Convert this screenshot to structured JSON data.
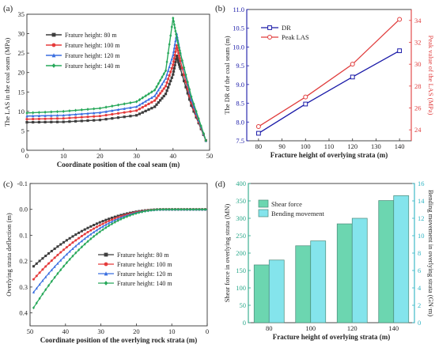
{
  "figure": {
    "panels": [
      "(a)",
      "(b)",
      "(c)",
      "(d)"
    ]
  },
  "chart_data": [
    {
      "id": "a",
      "panel_label": "(a)",
      "type": "line",
      "xlabel": "Coordinate position of the coal seam (m)",
      "ylabel": "The LAS in the coal seam (MPa)",
      "xlim": [
        0,
        50
      ],
      "ylim": [
        0,
        35
      ],
      "xticks": [
        "0",
        "10",
        "20",
        "30",
        "40",
        "50"
      ],
      "yticks": [
        "0",
        "5",
        "10",
        "15",
        "20",
        "25",
        "30",
        "35"
      ],
      "legend_position": "upper-left",
      "series": [
        {
          "name": "Frature height: 80 m",
          "color": "#3d3d3d",
          "marker": "square",
          "x": [
            0,
            10,
            20,
            30,
            35,
            38,
            40,
            41,
            42,
            45,
            49
          ],
          "y": [
            7.2,
            7.3,
            7.8,
            9.0,
            11.2,
            14.5,
            19.5,
            24.3,
            21.0,
            11.5,
            2.5
          ]
        },
        {
          "name": "Frature height: 100 m",
          "color": "#e53b3b",
          "marker": "circle",
          "x": [
            0,
            10,
            20,
            30,
            35,
            38,
            40,
            41,
            42,
            45,
            49
          ],
          "y": [
            8.0,
            8.2,
            8.8,
            10.2,
            12.8,
            16.5,
            22.0,
            27.0,
            23.0,
            12.2,
            2.5
          ]
        },
        {
          "name": "Frature height: 120 m",
          "color": "#3a6fe0",
          "marker": "triangle",
          "x": [
            0,
            10,
            20,
            30,
            35,
            38,
            40,
            41,
            42,
            45,
            49
          ],
          "y": [
            8.8,
            9.0,
            9.7,
            11.2,
            14.0,
            18.5,
            24.5,
            30.0,
            25.0,
            13.0,
            2.5
          ]
        },
        {
          "name": "Frature height: 140 m",
          "color": "#27a85a",
          "marker": "diamond",
          "x": [
            0,
            10,
            20,
            30,
            35,
            38,
            40,
            41,
            42,
            45,
            49
          ],
          "y": [
            9.6,
            10.0,
            10.8,
            12.5,
            15.5,
            20.5,
            34.0,
            29.0,
            25.0,
            13.8,
            2.5
          ]
        }
      ]
    },
    {
      "id": "b",
      "panel_label": "(b)",
      "type": "line",
      "xlabel": "Fracture height of overlying strata (m)",
      "ylabel": "The DR of the coal seam (m)",
      "y2label": "Peak value of the LAS (MPa)",
      "xlim": [
        75,
        145
      ],
      "ylim": [
        7.5,
        11.0
      ],
      "y2lim": [
        23,
        35
      ],
      "xticks": [
        "80",
        "90",
        "100",
        "110",
        "120",
        "130",
        "140"
      ],
      "yticks": [
        "7.5",
        "8.0",
        "8.5",
        "9.0",
        "9.5",
        "10.0",
        "10.5",
        "11.0"
      ],
      "y2ticks": [
        "24",
        "26",
        "28",
        "30",
        "32",
        "34"
      ],
      "legend_position": "upper-left",
      "series": [
        {
          "name": "DR",
          "color": "#1a1aa8",
          "marker": "square",
          "axis": "left",
          "x": [
            80,
            100,
            120,
            140
          ],
          "y": [
            7.7,
            8.48,
            9.2,
            9.9
          ]
        },
        {
          "name": "Peak LAS",
          "color": "#e03c3c",
          "marker": "circle",
          "axis": "right",
          "x": [
            80,
            100,
            120,
            140
          ],
          "y": [
            24.3,
            27.0,
            30.0,
            34.1
          ]
        }
      ]
    },
    {
      "id": "c",
      "panel_label": "(c)",
      "type": "line",
      "xlabel": "Coordinate position of the overlying rock strata (m)",
      "ylabel": "Overlying strata deflection (m)",
      "xlim": [
        50,
        0
      ],
      "ylim": [
        -0.1,
        0.45
      ],
      "ylim_inverted": true,
      "xticks": [
        "50",
        "40",
        "30",
        "20",
        "10",
        "0"
      ],
      "yticks": [
        "-0.1",
        "0.0",
        "0.1",
        "0.2",
        "0.3",
        "0.4"
      ],
      "legend_position": "center-right",
      "series": [
        {
          "name": "Frature height: 80 m",
          "color": "#3d3d3d",
          "marker": "square",
          "amplitude": 0.22
        },
        {
          "name": "Frature height: 100 m",
          "color": "#e53b3b",
          "marker": "circle",
          "amplitude": 0.27
        },
        {
          "name": "Frature height: 120 m",
          "color": "#3a6fe0",
          "marker": "triangle",
          "amplitude": 0.32
        },
        {
          "name": "Frature height: 140 m",
          "color": "#27a85a",
          "marker": "diamond",
          "amplitude": 0.38
        }
      ]
    },
    {
      "id": "d",
      "panel_label": "(d)",
      "type": "bar",
      "xlabel": "Fracture height of overlying strata (m)",
      "ylabel": "Shear force in overlying strata (MN)",
      "y2label": "Bending movement in overlying strata (GN·m)",
      "categories": [
        "80",
        "100",
        "120",
        "140"
      ],
      "ylim": [
        0,
        400
      ],
      "y2lim": [
        0,
        16
      ],
      "yticks": [
        "0",
        "50",
        "100",
        "150",
        "200",
        "250",
        "300",
        "350",
        "400"
      ],
      "y2ticks": [
        "0",
        "2",
        "4",
        "6",
        "8",
        "10",
        "12",
        "14",
        "16"
      ],
      "legend_position": "upper-left",
      "series": [
        {
          "name": "Shear force",
          "color": "#6cd6b0",
          "axis": "left",
          "values": [
            166,
            221,
            284,
            351
          ]
        },
        {
          "name": "Bending movement",
          "color": "#84e4ec",
          "axis": "right",
          "values": [
            7.2,
            9.4,
            12.0,
            14.6
          ]
        }
      ]
    }
  ]
}
